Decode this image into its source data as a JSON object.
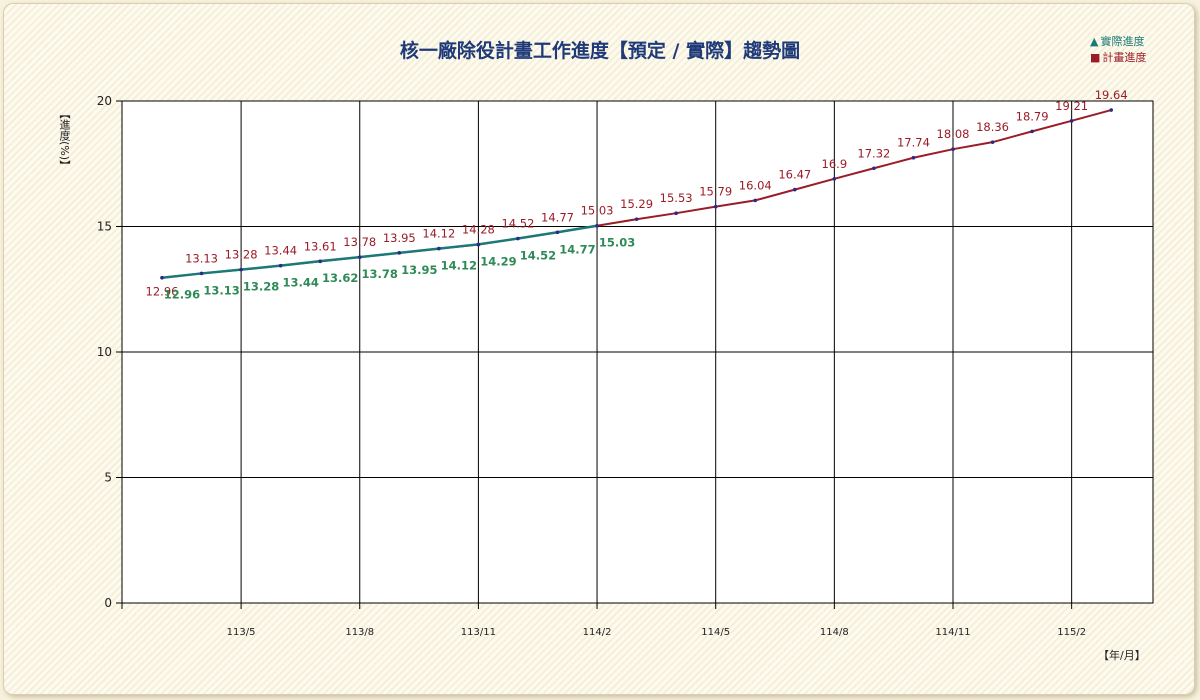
{
  "title": "核一廠除役計畫工作進度【預定 / 實際】趨勢圖",
  "colors": {
    "planned": "#9b1c27",
    "actual": "#1b7a78",
    "actual_label": "#2e8b57",
    "title": "#1f3a78",
    "marker": "#2a2a8a"
  },
  "legend": [
    {
      "symbol": "▲",
      "label": "實際進度",
      "color": "#1b7a78",
      "icon": "triangle-icon"
    },
    {
      "symbol": "■",
      "label": "計畫進度",
      "color": "#9b1c27",
      "icon": "square-icon"
    }
  ],
  "chart_data": {
    "type": "line",
    "title": "核一廠除役計畫工作進度【預定 / 實際】趨勢圖",
    "ylabel": "【進度(%)】",
    "xlabel": "【年/月】",
    "ylim": [
      0,
      20
    ],
    "yticks": [
      0,
      5,
      10,
      15,
      20
    ],
    "xticks": [
      "113/5",
      "113/8",
      "113/11",
      "114/2",
      "114/5",
      "114/8",
      "114/11",
      "115/2"
    ],
    "grid": true,
    "legend_position": "top-right",
    "series": [
      {
        "name": "計畫進度",
        "values": [
          12.96,
          13.13,
          13.28,
          13.44,
          13.61,
          13.78,
          13.95,
          14.12,
          14.28,
          14.52,
          14.77,
          15.03,
          15.29,
          15.53,
          15.79,
          16.04,
          16.47,
          16.9,
          17.32,
          17.74,
          18.08,
          18.36,
          18.79,
          19.21,
          19.64
        ]
      },
      {
        "name": "實際進度",
        "values": [
          12.96,
          13.13,
          13.28,
          13.44,
          13.62,
          13.78,
          13.95,
          14.12,
          14.29,
          14.52,
          14.77,
          15.03
        ]
      }
    ]
  }
}
